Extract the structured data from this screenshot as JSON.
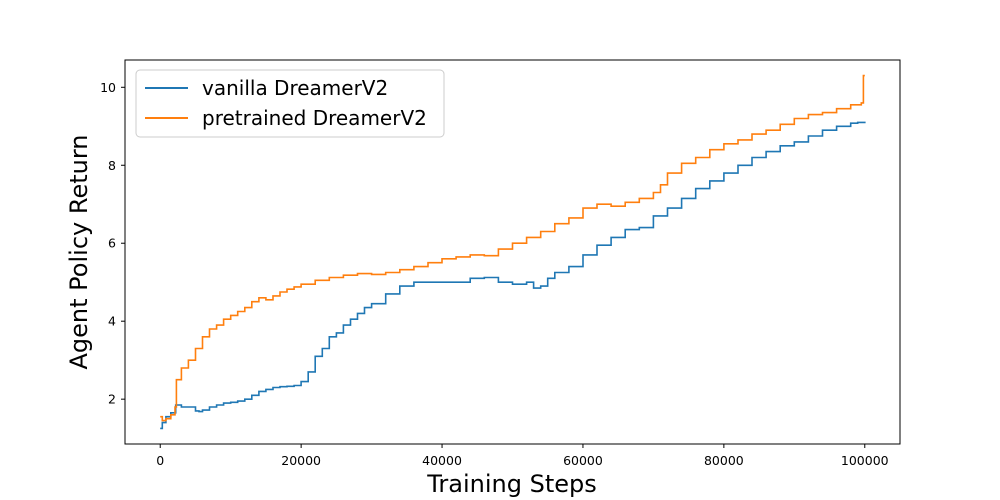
{
  "chart_data": {
    "type": "line",
    "title": "",
    "xlabel": "Training Steps",
    "ylabel": "Agent Policy Return",
    "xlim": [
      -5000,
      105000
    ],
    "ylim": [
      0.85,
      10.7
    ],
    "xticks": [
      0,
      20000,
      40000,
      60000,
      80000,
      100000
    ],
    "xtick_labels": [
      "0",
      "20000",
      "40000",
      "60000",
      "80000",
      "100000"
    ],
    "yticks": [
      2,
      4,
      6,
      8,
      10
    ],
    "ytick_labels": [
      "2",
      "4",
      "6",
      "8",
      "10"
    ],
    "grid": false,
    "legend_position": "top-left",
    "series": [
      {
        "name": "vanilla DreamerV2",
        "color": "#1f77b4",
        "x": [
          0,
          300,
          800,
          1500,
          2200,
          3000,
          4000,
          5000,
          5500,
          6000,
          7000,
          8000,
          9000,
          10000,
          11000,
          12000,
          13000,
          14000,
          15000,
          16000,
          17000,
          18000,
          19000,
          20000,
          21000,
          22000,
          23000,
          24000,
          25000,
          26000,
          27000,
          28000,
          29000,
          30000,
          32000,
          34000,
          36000,
          38000,
          40000,
          42000,
          44000,
          46000,
          48000,
          50000,
          52000,
          53000,
          54000,
          55000,
          56000,
          58000,
          60000,
          62000,
          64000,
          66000,
          68000,
          70000,
          72000,
          74000,
          76000,
          78000,
          80000,
          82000,
          84000,
          86000,
          88000,
          90000,
          92000,
          94000,
          96000,
          98000,
          99000,
          100000
        ],
        "y": [
          1.25,
          1.4,
          1.55,
          1.65,
          1.85,
          1.8,
          1.8,
          1.7,
          1.68,
          1.72,
          1.8,
          1.85,
          1.9,
          1.92,
          1.95,
          2.0,
          2.1,
          2.2,
          2.25,
          2.3,
          2.32,
          2.33,
          2.35,
          2.45,
          2.7,
          3.1,
          3.3,
          3.6,
          3.7,
          3.9,
          4.05,
          4.2,
          4.35,
          4.45,
          4.7,
          4.9,
          5.0,
          5.0,
          5.0,
          5.0,
          5.1,
          5.12,
          5.0,
          4.95,
          5.0,
          4.85,
          4.9,
          5.1,
          5.25,
          5.4,
          5.7,
          5.95,
          6.15,
          6.35,
          6.4,
          6.7,
          6.9,
          7.15,
          7.4,
          7.6,
          7.8,
          8.0,
          8.2,
          8.35,
          8.5,
          8.6,
          8.75,
          8.9,
          9.0,
          9.08,
          9.1,
          9.12
        ]
      },
      {
        "name": "pretrained DreamerV2",
        "color": "#ff7f0e",
        "x": [
          0,
          300,
          800,
          1500,
          2100,
          2300,
          3000,
          4000,
          5000,
          6000,
          7000,
          8000,
          9000,
          10000,
          11000,
          12000,
          13000,
          14000,
          15000,
          16000,
          17000,
          18000,
          19000,
          20000,
          22000,
          24000,
          26000,
          28000,
          30000,
          32000,
          34000,
          36000,
          38000,
          40000,
          42000,
          44000,
          46000,
          48000,
          50000,
          52000,
          54000,
          56000,
          58000,
          60000,
          62000,
          64000,
          66000,
          68000,
          70000,
          71000,
          72000,
          74000,
          76000,
          78000,
          80000,
          82000,
          84000,
          86000,
          88000,
          90000,
          92000,
          94000,
          96000,
          98000,
          99500,
          99500,
          99800,
          100000
        ],
        "y": [
          1.55,
          1.45,
          1.5,
          1.6,
          1.8,
          2.5,
          2.8,
          3.0,
          3.3,
          3.6,
          3.8,
          3.9,
          4.05,
          4.15,
          4.25,
          4.35,
          4.5,
          4.6,
          4.55,
          4.65,
          4.75,
          4.82,
          4.88,
          4.95,
          5.05,
          5.12,
          5.18,
          5.22,
          5.2,
          5.25,
          5.32,
          5.4,
          5.5,
          5.6,
          5.65,
          5.7,
          5.68,
          5.85,
          6.0,
          6.15,
          6.3,
          6.5,
          6.65,
          6.9,
          7.0,
          6.95,
          7.05,
          7.15,
          7.3,
          7.5,
          7.8,
          8.05,
          8.2,
          8.4,
          8.55,
          8.65,
          8.8,
          8.9,
          9.05,
          9.2,
          9.3,
          9.35,
          9.45,
          9.55,
          9.6,
          9.6,
          10.3,
          10.3
        ]
      }
    ]
  }
}
